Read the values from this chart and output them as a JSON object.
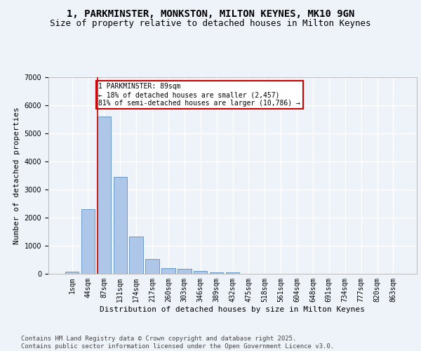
{
  "title_line1": "1, PARKMINSTER, MONKSTON, MILTON KEYNES, MK10 9GN",
  "title_line2": "Size of property relative to detached houses in Milton Keynes",
  "xlabel": "Distribution of detached houses by size in Milton Keynes",
  "ylabel": "Number of detached properties",
  "categories": [
    "1sqm",
    "44sqm",
    "87sqm",
    "131sqm",
    "174sqm",
    "217sqm",
    "260sqm",
    "303sqm",
    "346sqm",
    "389sqm",
    "432sqm",
    "475sqm",
    "518sqm",
    "561sqm",
    "604sqm",
    "648sqm",
    "691sqm",
    "734sqm",
    "777sqm",
    "820sqm",
    "863sqm"
  ],
  "values": [
    80,
    2300,
    5600,
    3450,
    1320,
    520,
    210,
    175,
    100,
    60,
    40,
    10,
    5,
    3,
    2,
    1,
    1,
    0,
    0,
    0,
    0
  ],
  "bar_color": "#aec6e8",
  "bar_edge_color": "#5a8fc2",
  "highlight_bar_index": 2,
  "highlight_line_color": "#cc0000",
  "annotation_text": "1 PARKMINSTER: 89sqm\n← 18% of detached houses are smaller (2,457)\n81% of semi-detached houses are larger (10,786) →",
  "annotation_box_color": "#ffffff",
  "annotation_box_edge_color": "#cc0000",
  "footer_text": "Contains HM Land Registry data © Crown copyright and database right 2025.\nContains public sector information licensed under the Open Government Licence v3.0.",
  "ylim": [
    0,
    7000
  ],
  "background_color": "#eef3fa",
  "grid_color": "#ffffff",
  "title_fontsize": 10,
  "subtitle_fontsize": 9,
  "axis_fontsize": 8,
  "tick_fontsize": 7,
  "footer_fontsize": 6.5
}
